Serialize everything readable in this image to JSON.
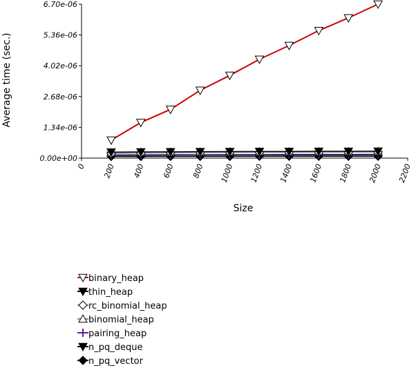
{
  "chart_data": {
    "type": "line",
    "xlabel": "Size",
    "ylabel": "Average time (sec.)",
    "xlim": [
      0,
      2200
    ],
    "ylim": [
      0,
      6.7e-06
    ],
    "x_ticks": [
      "0",
      "200",
      "400",
      "600",
      "800",
      "1000",
      "1200",
      "1400",
      "1600",
      "1800",
      "2000",
      "2200"
    ],
    "y_ticks": [
      "0.00e+00",
      "1.34e-06",
      "2.68e-06",
      "4.02e-06",
      "5.36e-06",
      "6.70e-06"
    ],
    "grid": false,
    "legend_position": "bottom-left",
    "x": [
      200,
      400,
      600,
      800,
      1000,
      1200,
      1400,
      1600,
      1800,
      2000
    ],
    "series": [
      {
        "name": "binary_heap",
        "color": "#cc0000",
        "marker": "triangle-down-open",
        "values": [
          7.8e-07,
          1.55e-06,
          2.12e-06,
          2.95e-06,
          3.6e-06,
          4.3e-06,
          4.9e-06,
          5.55e-06,
          6.1e-06,
          6.7e-06
        ]
      },
      {
        "name": "thin_heap",
        "color": "#000000",
        "marker": "triangle-down-filled",
        "values": [
          2.6e-07,
          2.7e-07,
          2.75e-07,
          2.8e-07,
          2.85e-07,
          2.9e-07,
          2.9e-07,
          2.95e-07,
          2.95e-07,
          3e-07
        ]
      },
      {
        "name": "rc_binomial_heap",
        "color": "#999999",
        "marker": "diamond-open",
        "values": [
          2e-07,
          2.2e-07,
          2.3e-07,
          2.35e-07,
          2.4e-07,
          2.45e-07,
          2.5e-07,
          2.5e-07,
          2.55e-07,
          2.6e-07
        ]
      },
      {
        "name": "binomial_heap",
        "color": "#888888",
        "marker": "triangle-up-open",
        "values": [
          2.3e-07,
          2.5e-07,
          2.55e-07,
          2.6e-07,
          2.65e-07,
          2.7e-07,
          2.7e-07,
          2.75e-07,
          2.75e-07,
          2.8e-07
        ]
      },
      {
        "name": "pairing_heap",
        "color": "#5522aa",
        "marker": "plus",
        "values": [
          1.4e-07,
          1.45e-07,
          1.5e-07,
          1.5e-07,
          1.55e-07,
          1.55e-07,
          1.6e-07,
          1.6e-07,
          1.6e-07,
          1.65e-07
        ]
      },
      {
        "name": "n_pq_deque",
        "color": "#000000",
        "marker": "triangle-down-filled",
        "values": [
          1.2e-07,
          1.25e-07,
          1.3e-07,
          1.3e-07,
          1.3e-07,
          1.35e-07,
          1.35e-07,
          1.35e-07,
          1.35e-07,
          1.4e-07
        ]
      },
      {
        "name": "n_pq_vector",
        "color": "#000000",
        "marker": "diamond-filled",
        "values": [
          7e-08,
          7e-08,
          7.5e-08,
          7.5e-08,
          7.5e-08,
          8e-08,
          8e-08,
          8e-08,
          8e-08,
          8e-08
        ]
      }
    ]
  }
}
